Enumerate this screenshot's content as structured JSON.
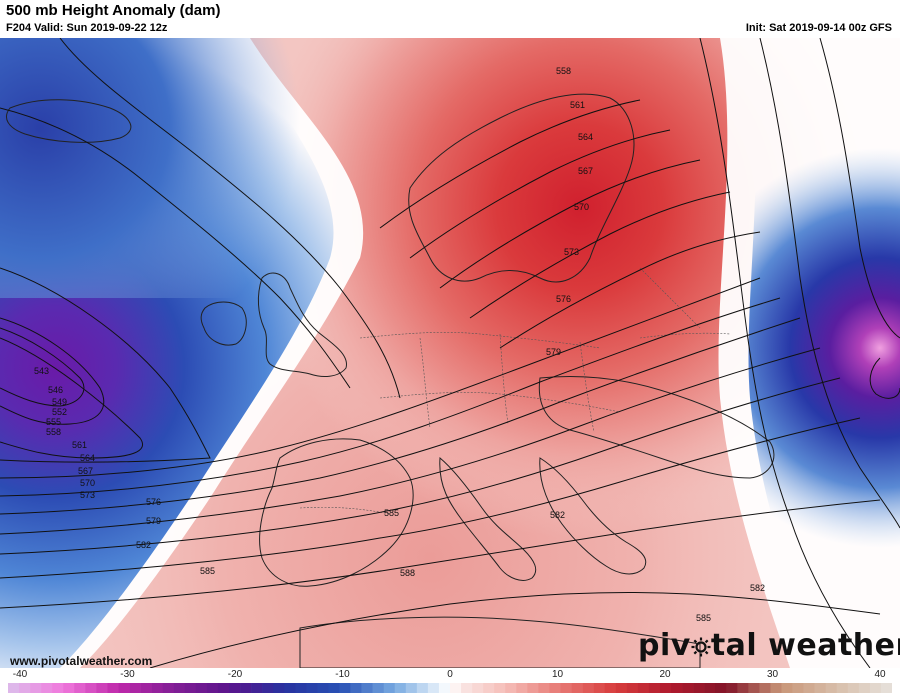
{
  "header": {
    "title": "500 mb Height Anomaly (dam)",
    "valid": "F204 Valid: Sun 2019-09-22 12z",
    "init": "Init: Sat 2019-09-14 00z GFS"
  },
  "footer": {
    "website": "www.pivotalweather.com",
    "brand_pre": "piv",
    "brand_post": "tal weather"
  },
  "colorbar": {
    "ticks": [
      "-40",
      "-30",
      "-20",
      "-10",
      "0",
      "10",
      "20",
      "30",
      "40"
    ],
    "min": -40,
    "max": 40,
    "bins": 80
  },
  "contour_labels": {
    "west": [
      "543",
      "546",
      "549",
      "552",
      "555",
      "558",
      "561",
      "564",
      "567",
      "570",
      "573",
      "576",
      "579",
      "582",
      "585"
    ],
    "east": [
      "558",
      "561",
      "564",
      "567",
      "570",
      "573",
      "576",
      "579",
      "582",
      "585",
      "588",
      "582",
      "585"
    ]
  },
  "colors": {
    "negative_extreme": "#5a1a9a",
    "negative_strong": "#1f3fa8",
    "negative_mid": "#4f86d6",
    "negative_light": "#b8d2f0",
    "neutral": "#ffffff",
    "positive_light": "#f5c7c4",
    "positive_mid": "#e57b76",
    "positive_strong": "#d63a38",
    "positive_extreme": "#a0123a",
    "contour_line": "#111111",
    "coastline": "#222222",
    "border": "#555555"
  }
}
